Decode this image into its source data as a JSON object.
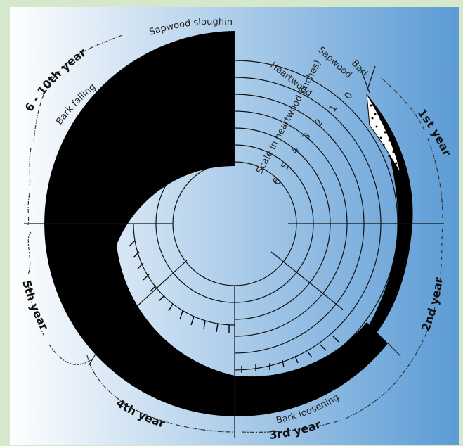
{
  "diagram": {
    "labels": {
      "bark": "Bark",
      "sapwood": "Sapwood",
      "heartwood": "Heartwood",
      "scale": "Scale in heartwood (inches)",
      "sapwood_sloughing": "Sapwood sloughing",
      "bark_falling": "Bark falling",
      "bark_loosening": "Bark loosening"
    },
    "scale_ticks": [
      "0",
      "1",
      "2",
      "3",
      "4",
      "5",
      "6"
    ],
    "years": {
      "y1": "1st year",
      "y2": "2nd year",
      "y3": "3rd year",
      "y4": "4th year",
      "y5": "5th year",
      "y6_10": "6 - 10th year"
    },
    "colors": {
      "frame": "#d5e8cc",
      "gradient_left": "#ffffff",
      "gradient_right": "#5b9bd5",
      "wood": "#000000"
    }
  }
}
